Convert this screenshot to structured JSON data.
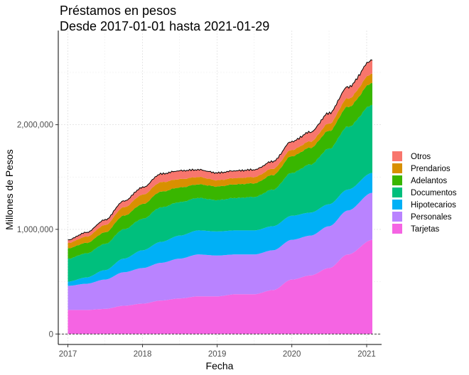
{
  "chart_data": {
    "type": "area",
    "title": "Préstamos en pesos",
    "subtitle": "Desde 2017-01-01 hasta 2021-01-29",
    "xlabel": "Fecha",
    "ylabel": "Millones de Pesos",
    "x_ticks": [
      "2017",
      "2018",
      "2019",
      "2020",
      "2021"
    ],
    "y_ticks": [
      "0",
      "1,000,000",
      "2,000,000"
    ],
    "ylim": [
      -100000,
      2900000
    ],
    "xlim": [
      "2016-11-15",
      "2021-03-15"
    ],
    "grid": true,
    "stacked": true,
    "legend_position": "right",
    "x": [
      "2017-01-01",
      "2017-04-01",
      "2017-07-01",
      "2017-10-01",
      "2018-01-01",
      "2018-04-01",
      "2018-07-01",
      "2018-10-01",
      "2019-01-01",
      "2019-04-01",
      "2019-07-01",
      "2019-10-01",
      "2020-01-01",
      "2020-04-01",
      "2020-07-01",
      "2020-10-01",
      "2021-01-29"
    ],
    "series": [
      {
        "name": "Tarjetas",
        "color": "#F564E3",
        "values": [
          230000,
          230000,
          240000,
          270000,
          290000,
          320000,
          340000,
          360000,
          360000,
          380000,
          380000,
          420000,
          520000,
          560000,
          630000,
          760000,
          900000
        ]
      },
      {
        "name": "Personales",
        "color": "#B983FF",
        "values": [
          230000,
          250000,
          280000,
          320000,
          340000,
          360000,
          380000,
          400000,
          390000,
          380000,
          380000,
          380000,
          380000,
          380000,
          400000,
          420000,
          450000
        ]
      },
      {
        "name": "Hipotecarios",
        "color": "#00B0F6",
        "values": [
          40000,
          60000,
          90000,
          130000,
          170000,
          200000,
          220000,
          230000,
          230000,
          230000,
          230000,
          230000,
          230000,
          220000,
          210000,
          200000,
          190000
        ]
      },
      {
        "name": "Documentos",
        "color": "#00BF7D",
        "values": [
          220000,
          230000,
          250000,
          280000,
          300000,
          330000,
          320000,
          310000,
          300000,
          310000,
          320000,
          350000,
          410000,
          460000,
          530000,
          600000,
          650000
        ]
      },
      {
        "name": "Adelantos",
        "color": "#39B600",
        "values": [
          100000,
          100000,
          110000,
          130000,
          140000,
          150000,
          140000,
          130000,
          130000,
          130000,
          130000,
          140000,
          160000,
          160000,
          170000,
          190000,
          210000
        ]
      },
      {
        "name": "Prendarios",
        "color": "#D89000",
        "values": [
          50000,
          60000,
          70000,
          80000,
          90000,
          90000,
          80000,
          70000,
          60000,
          60000,
          60000,
          60000,
          60000,
          60000,
          70000,
          80000,
          90000
        ]
      },
      {
        "name": "Otros",
        "color": "#F8766D",
        "values": [
          30000,
          40000,
          50000,
          60000,
          70000,
          80000,
          80000,
          70000,
          70000,
          70000,
          70000,
          70000,
          80000,
          90000,
          100000,
          110000,
          130000
        ]
      }
    ]
  }
}
